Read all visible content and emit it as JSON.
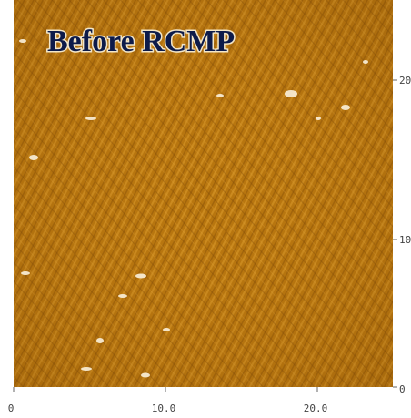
{
  "image": {
    "title": "Before RCMP",
    "x_axis": {
      "ticks": [
        "0",
        "10.0",
        "20.0"
      ]
    },
    "y_axis": {
      "ticks": [
        "20",
        "10",
        "0"
      ]
    }
  }
}
